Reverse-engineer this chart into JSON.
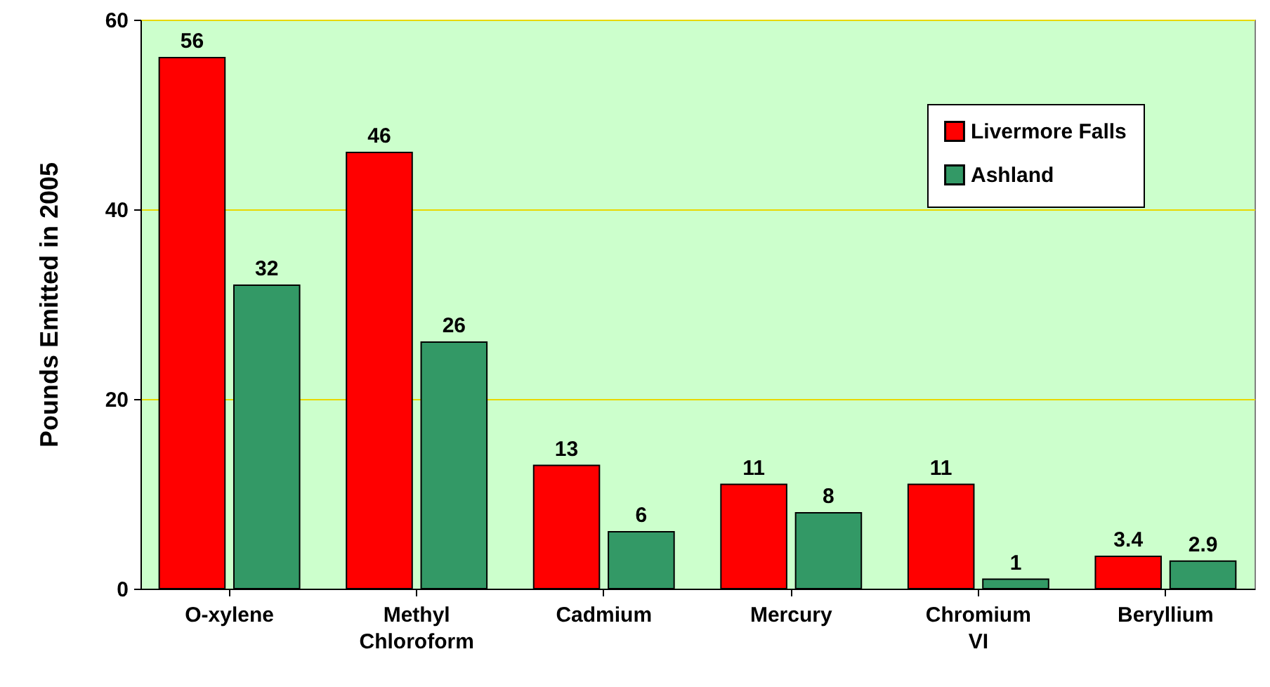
{
  "chart_data": {
    "type": "bar",
    "ylabel": "Pounds Emitted in 2005",
    "categories": [
      "O-xylene",
      "Methyl Chloroform",
      "Cadmium",
      "Mercury",
      "Chromium VI",
      "Beryllium"
    ],
    "series": [
      {
        "name": "Livermore Falls",
        "color": "#ff0000",
        "values": [
          56,
          46,
          13,
          11,
          11,
          3.4
        ]
      },
      {
        "name": "Ashland",
        "color": "#339966",
        "values": [
          32,
          26,
          6,
          8,
          1,
          2.9
        ]
      }
    ],
    "ylim": [
      0,
      60
    ],
    "yticks": [
      0,
      20,
      40,
      60
    ],
    "grid": "y",
    "legend": "top right",
    "data_labels": true
  }
}
